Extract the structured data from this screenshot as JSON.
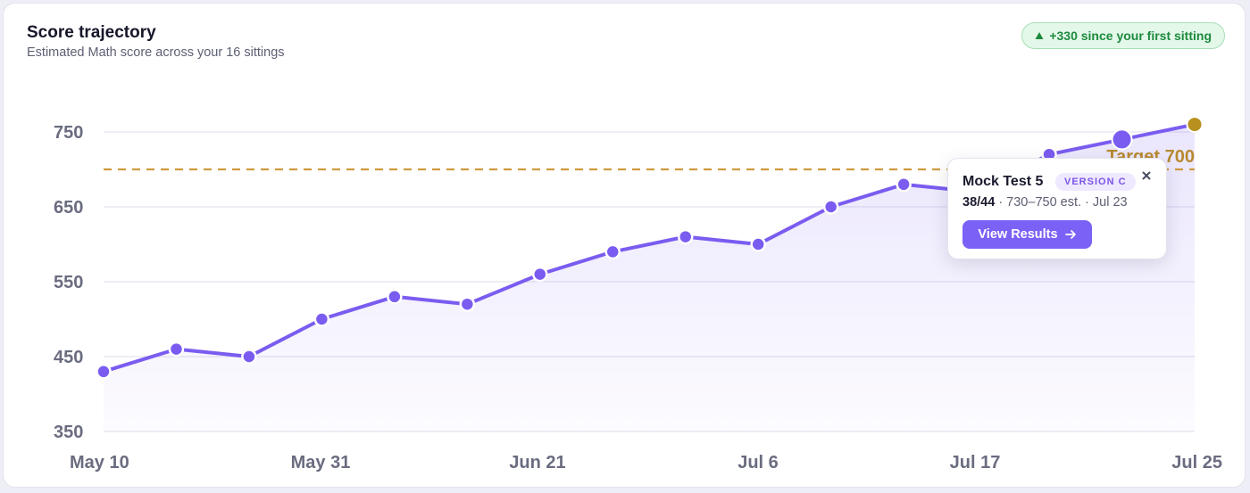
{
  "header": {
    "title": "Score trajectory",
    "subtitle": "Estimated Math score across your 16 sittings",
    "badge_text": "+330 since your first sitting",
    "badge_icon": "triangle-up-icon"
  },
  "tooltip": {
    "title": "Mock Test 5",
    "version": "VERSION C",
    "score": "38/44",
    "details": " · 730–750 est. · Jul 23",
    "button_label": "View Results",
    "button_icon": "arrow-right-icon",
    "close_icon": "close-icon"
  },
  "chart_data": {
    "type": "area",
    "title": "Score trajectory",
    "subtitle": "Estimated Math score across your 16 sittings",
    "x_labels": [
      "May 10",
      "May 31",
      "Jun 21",
      "Jul 6",
      "Jul 17",
      "Jul 25"
    ],
    "y_ticks": [
      350,
      450,
      550,
      650,
      750
    ],
    "ylim": [
      350,
      750
    ],
    "grid": true,
    "series": [
      {
        "values": [
          430,
          460,
          450,
          500,
          530,
          520,
          560,
          590,
          610,
          600,
          650,
          680,
          670,
          720,
          740,
          760
        ]
      }
    ],
    "highlighted_index": 14,
    "last_point_color": "#b8901f",
    "target": {
      "value": 700,
      "label": "Target 700"
    },
    "colors": {
      "line": "#7b5cf0",
      "area": "#a08cf5",
      "target": "#cf9a3f",
      "grid": "#e3e3ee"
    }
  }
}
